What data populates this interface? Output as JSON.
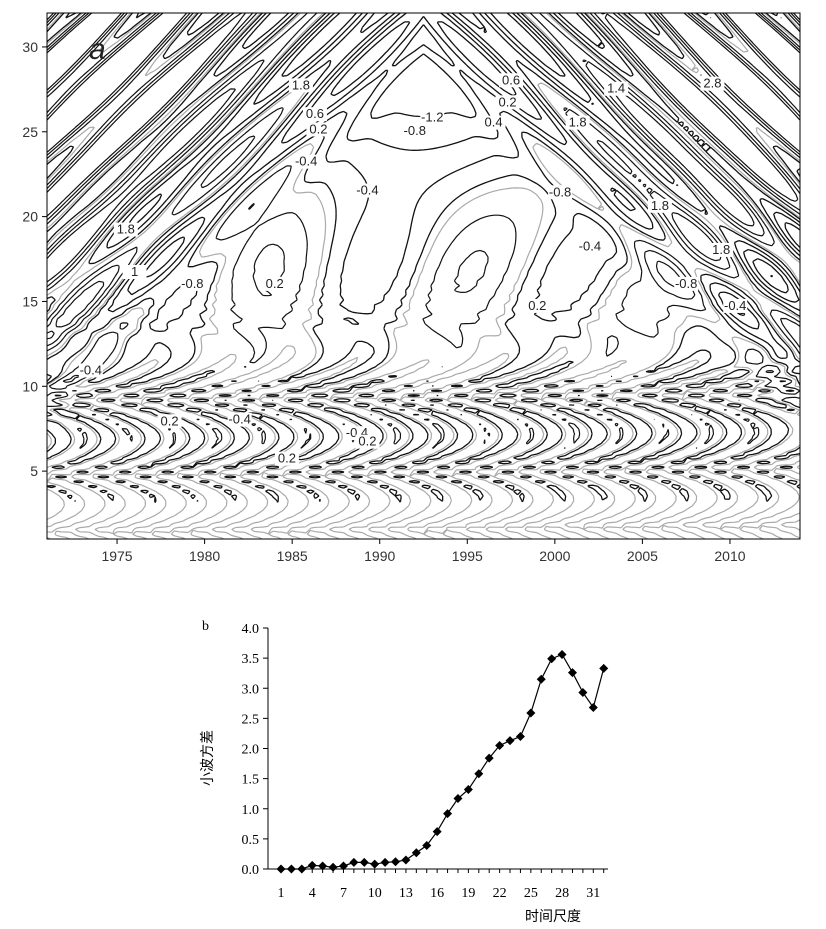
{
  "chart_data": [
    {
      "type": "contour",
      "panel_label": "a",
      "xlim": [
        1971,
        2014
      ],
      "ylim": [
        1,
        32
      ],
      "x_ticks": [
        "1975",
        "1980",
        "1985",
        "1990",
        "1995",
        "2000",
        "2005",
        "2010"
      ],
      "x_tick_values": [
        1975,
        1980,
        1985,
        1990,
        1995,
        2000,
        2005,
        2010
      ],
      "y_ticks": [
        "5",
        "10",
        "15",
        "20",
        "25",
        "30"
      ],
      "y_tick_values": [
        5,
        10,
        15,
        20,
        25,
        30
      ],
      "line_styles": {
        "positive": "solid black",
        "negative": "dashed black",
        "zero": "solid gray"
      },
      "contour_labels": [
        {
          "text": "1.8",
          "x": 1985.5,
          "y": 27.5
        },
        {
          "text": "0.6",
          "x": 1986.3,
          "y": 25.8
        },
        {
          "text": "0.2",
          "x": 1986.5,
          "y": 24.9
        },
        {
          "text": "-0.4",
          "x": 1985.8,
          "y": 23.0
        },
        {
          "text": "-1.2",
          "x": 1993.0,
          "y": 25.6
        },
        {
          "text": "-0.8",
          "x": 1992.0,
          "y": 24.8
        },
        {
          "text": "0.6",
          "x": 1997.5,
          "y": 27.8
        },
        {
          "text": "0.2",
          "x": 1997.3,
          "y": 26.5
        },
        {
          "text": "0.4",
          "x": 1996.5,
          "y": 25.3
        },
        {
          "text": "1.8",
          "x": 2001.3,
          "y": 25.3
        },
        {
          "text": "1.4",
          "x": 2003.5,
          "y": 27.3
        },
        {
          "text": "2.8",
          "x": 2009.0,
          "y": 27.6
        },
        {
          "text": "-0.4",
          "x": 1989.3,
          "y": 21.3
        },
        {
          "text": "-0.8",
          "x": 2000.3,
          "y": 21.2
        },
        {
          "text": "1.8",
          "x": 2006.0,
          "y": 20.4
        },
        {
          "text": "1.8",
          "x": 2009.5,
          "y": 17.8
        },
        {
          "text": "-0.4",
          "x": 2002.0,
          "y": 18.0
        },
        {
          "text": "-0.8",
          "x": 2007.5,
          "y": 15.8
        },
        {
          "text": "-0.4",
          "x": 2010.3,
          "y": 14.5
        },
        {
          "text": "0.2",
          "x": 1984.0,
          "y": 15.8
        },
        {
          "text": "-0.8",
          "x": 1979.3,
          "y": 15.8
        },
        {
          "text": "1",
          "x": 1976.0,
          "y": 16.5
        },
        {
          "text": "0.2",
          "x": 1999.0,
          "y": 14.5
        },
        {
          "text": "-0.4",
          "x": 1973.5,
          "y": 10.7
        },
        {
          "text": "0.2",
          "x": 1978.0,
          "y": 7.7
        },
        {
          "text": "-0.4",
          "x": 1982.0,
          "y": 7.8
        },
        {
          "text": "0.2",
          "x": 1984.7,
          "y": 5.5
        },
        {
          "text": "-0.4",
          "x": 1988.7,
          "y": 7.0
        },
        {
          "text": "0.2",
          "x": 1989.3,
          "y": 6.5
        },
        {
          "text": "1.8",
          "x": 1975.5,
          "y": 19.0
        }
      ]
    },
    {
      "type": "line",
      "panel_label": "b",
      "xlabel": "时间尺度",
      "ylabel": "小波方差",
      "ylim": [
        0.0,
        4.0
      ],
      "xlim": [
        1,
        33
      ],
      "x_ticks": [
        "1",
        "4",
        "7",
        "10",
        "13",
        "16",
        "19",
        "22",
        "25",
        "28",
        "31"
      ],
      "x_tick_values": [
        1,
        4,
        7,
        10,
        13,
        16,
        19,
        22,
        25,
        28,
        31
      ],
      "y_ticks": [
        "0.0",
        "0.5",
        "1.0",
        "1.5",
        "2.0",
        "2.5",
        "3.0",
        "3.5",
        "4.0"
      ],
      "y_tick_values": [
        0.0,
        0.5,
        1.0,
        1.5,
        2.0,
        2.5,
        3.0,
        3.5,
        4.0
      ],
      "marker": "diamond",
      "series": [
        {
          "x": [
            1,
            2,
            3,
            4,
            5,
            6,
            7,
            8,
            9,
            10,
            11,
            12,
            13,
            14,
            15,
            16,
            17,
            18,
            19,
            20,
            21,
            22,
            23,
            24,
            25,
            26,
            27,
            28,
            29,
            30,
            31,
            32
          ],
          "values": [
            0.0,
            0.0,
            0.0,
            0.06,
            0.05,
            0.03,
            0.05,
            0.11,
            0.11,
            0.08,
            0.11,
            0.12,
            0.15,
            0.27,
            0.39,
            0.62,
            0.92,
            1.17,
            1.32,
            1.58,
            1.84,
            2.05,
            2.13,
            2.2,
            2.59,
            3.15,
            3.49,
            3.56,
            3.26,
            2.93,
            2.68,
            3.33
          ]
        }
      ]
    }
  ]
}
